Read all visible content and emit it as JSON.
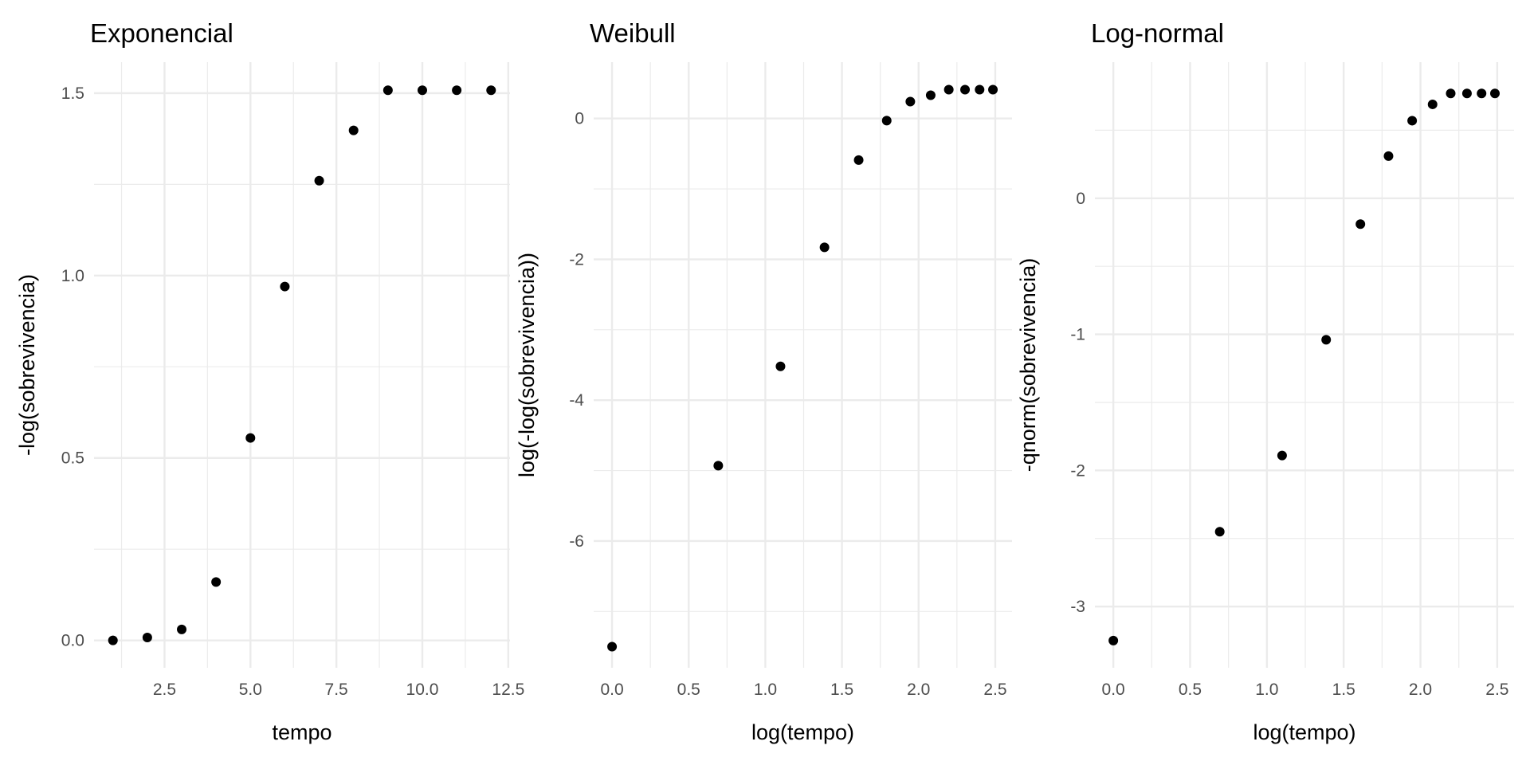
{
  "chart_data": [
    {
      "type": "scatter",
      "title": "Exponencial",
      "xlabel": "tempo",
      "ylabel": "-log(sobrevivencia)",
      "xlim": [
        0.45,
        12.55
      ],
      "ylim": [
        -0.075,
        1.585
      ],
      "xticks": [
        2.5,
        5.0,
        7.5,
        10.0,
        12.5
      ],
      "xtick_labels": [
        "2.5",
        "5.0",
        "7.5",
        "10.0",
        "12.5"
      ],
      "yticks": [
        0.0,
        0.5,
        1.0,
        1.5
      ],
      "ytick_labels": [
        "0.0",
        "0.5",
        "1.0",
        "1.5"
      ],
      "grid": true,
      "x": [
        1,
        2,
        3,
        4,
        5,
        6,
        7,
        8,
        9,
        10,
        11,
        12
      ],
      "y": [
        0.0,
        0.008,
        0.03,
        0.16,
        0.555,
        0.97,
        1.26,
        1.398,
        1.508,
        1.508,
        1.508,
        1.508
      ]
    },
    {
      "type": "scatter",
      "title": "Weibull",
      "xlabel": "log(tempo)",
      "ylabel": "log(-log(sobrevivencia))",
      "xlim": [
        -0.12,
        2.6096
      ],
      "ylim": [
        -7.8,
        0.8
      ],
      "xticks": [
        0.0,
        0.5,
        1.0,
        1.5,
        2.0,
        2.5
      ],
      "xtick_labels": [
        "0.0",
        "0.5",
        "1.0",
        "1.5",
        "2.0",
        "2.5"
      ],
      "yticks": [
        -6,
        -4,
        -2,
        0
      ],
      "ytick_labels": [
        "-6",
        "-4",
        "-2",
        "0"
      ],
      "grid": true,
      "x": [
        0.0,
        0.693,
        1.099,
        1.386,
        1.609,
        1.792,
        1.946,
        2.079,
        2.197,
        2.303,
        2.398,
        2.485
      ],
      "y": [
        -7.5,
        -4.93,
        -3.52,
        -1.83,
        -0.59,
        -0.03,
        0.24,
        0.33,
        0.41,
        0.41,
        0.41,
        0.41
      ]
    },
    {
      "type": "scatter",
      "title": "Log-normal",
      "xlabel": "log(tempo)",
      "ylabel": "-qnorm(sobrevivencia)",
      "xlim": [
        -0.12,
        2.6096
      ],
      "ylim": [
        -3.45,
        1.0
      ],
      "xticks": [
        0.0,
        0.5,
        1.0,
        1.5,
        2.0,
        2.5
      ],
      "xtick_labels": [
        "0.0",
        "0.5",
        "1.0",
        "1.5",
        "2.0",
        "2.5"
      ],
      "yticks": [
        -3,
        -2,
        -1,
        0
      ],
      "ytick_labels": [
        "-3",
        "-2",
        "-1",
        "0"
      ],
      "grid": true,
      "x": [
        0.0,
        0.693,
        1.099,
        1.386,
        1.609,
        1.792,
        1.946,
        2.079,
        2.197,
        2.303,
        2.398,
        2.485
      ],
      "y": [
        -3.25,
        -2.45,
        -1.89,
        -1.04,
        -0.19,
        0.31,
        0.57,
        0.69,
        0.77,
        0.77,
        0.77,
        0.77
      ]
    }
  ]
}
